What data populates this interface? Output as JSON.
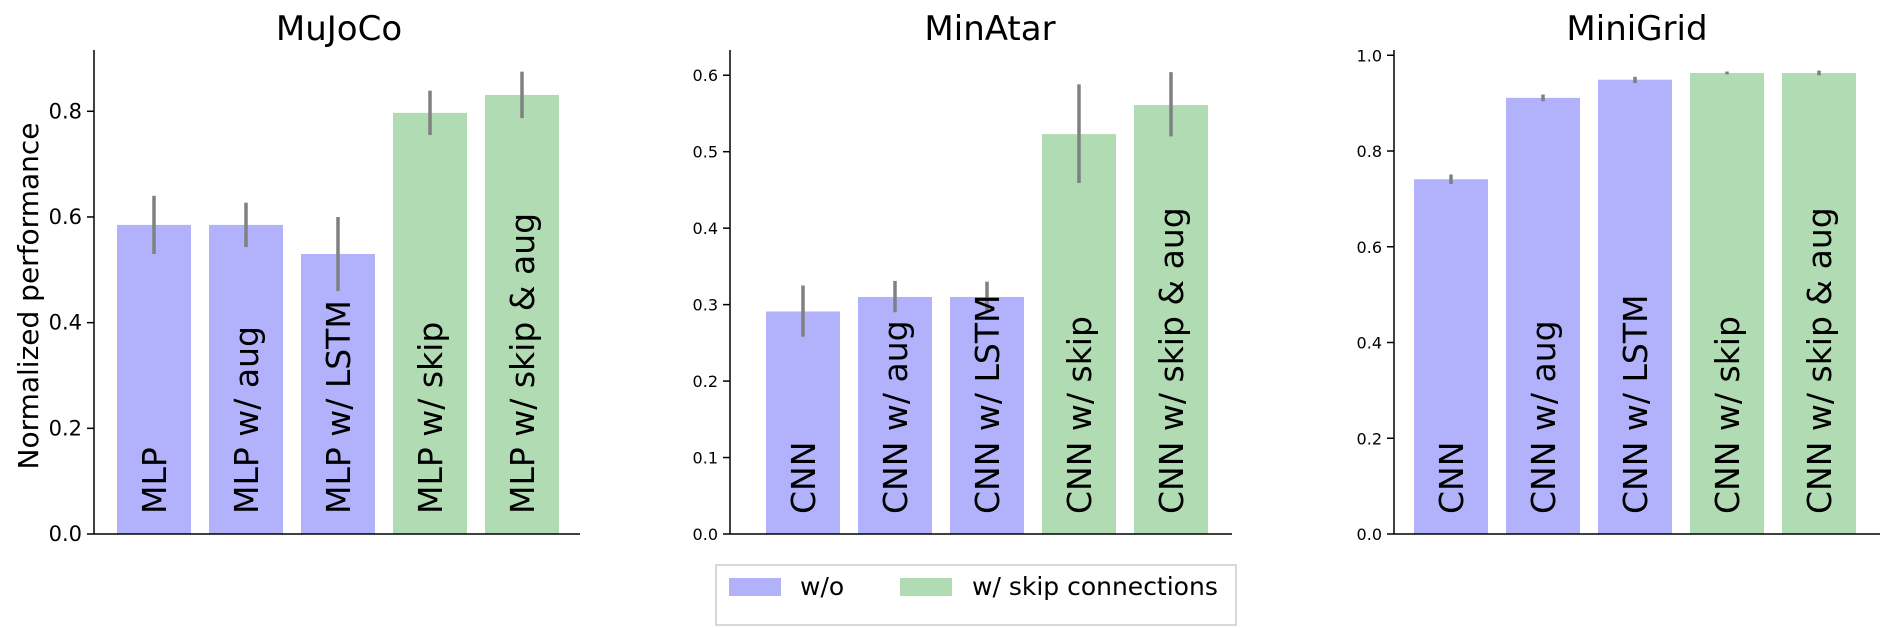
{
  "figure": {
    "ylabel": "Normalized performance",
    "colors": {
      "without": "#b2b2fc",
      "with_skip": "#b1dbb2",
      "error_bar": "#808080",
      "axis": "#000000"
    },
    "legend": {
      "placement": "bottom-center",
      "entries": [
        {
          "label": "w/o",
          "color": "#b2b2fc"
        },
        {
          "label": "w/ skip connections",
          "color": "#b1dbb2"
        }
      ]
    }
  },
  "chart_data": [
    {
      "type": "bar",
      "title": "MuJoCo",
      "categories": [
        "MLP",
        "MLP w/ aug",
        "MLP w/ LSTM",
        "MLP w/ skip",
        "MLP w/ skip & aug"
      ],
      "values": [
        0.585,
        0.585,
        0.53,
        0.797,
        0.831
      ],
      "error_low": [
        0.53,
        0.543,
        0.46,
        0.755,
        0.787
      ],
      "error_high": [
        0.64,
        0.627,
        0.6,
        0.839,
        0.875
      ],
      "groups": [
        "without",
        "without",
        "without",
        "with_skip",
        "with_skip"
      ],
      "ylim": [
        0,
        0.916
      ],
      "yticks": [
        0.0,
        0.2,
        0.4,
        0.6,
        0.8
      ],
      "ytick_labels": [
        "0.0",
        "0.2",
        "0.4",
        "0.6",
        "0.8"
      ]
    },
    {
      "type": "bar",
      "title": "MinAtar",
      "categories": [
        "CNN",
        "CNN w/ aug",
        "CNN w/ LSTM",
        "CNN w/ skip",
        "CNN w/ skip & aug"
      ],
      "values": [
        0.291,
        0.31,
        0.31,
        0.523,
        0.561
      ],
      "error_low": [
        0.258,
        0.29,
        0.29,
        0.459,
        0.52
      ],
      "error_high": [
        0.325,
        0.331,
        0.33,
        0.588,
        0.604
      ],
      "groups": [
        "without",
        "without",
        "without",
        "with_skip",
        "with_skip"
      ],
      "ylim": [
        0,
        0.633
      ],
      "yticks": [
        0.0,
        0.1,
        0.2,
        0.3,
        0.4,
        0.5,
        0.6
      ],
      "ytick_labels": [
        "0.0",
        "0.1",
        "0.2",
        "0.3",
        "0.4",
        "0.5",
        "0.6"
      ]
    },
    {
      "type": "bar",
      "title": "MiniGrid",
      "categories": [
        "CNN",
        "CNN w/ aug",
        "CNN w/ LSTM",
        "CNN w/ skip",
        "CNN w/ skip & aug"
      ],
      "values": [
        0.741,
        0.911,
        0.949,
        0.963,
        0.963
      ],
      "error_low": [
        0.731,
        0.904,
        0.942,
        0.96,
        0.958
      ],
      "error_high": [
        0.751,
        0.918,
        0.955,
        0.966,
        0.968
      ],
      "groups": [
        "without",
        "without",
        "without",
        "with_skip",
        "with_skip"
      ],
      "ylim": [
        0,
        1.011
      ],
      "yticks": [
        0.0,
        0.2,
        0.4,
        0.6,
        0.8,
        1.0
      ],
      "ytick_labels": [
        "0.0",
        "0.2",
        "0.4",
        "0.6",
        "0.8",
        "1.0"
      ]
    }
  ]
}
